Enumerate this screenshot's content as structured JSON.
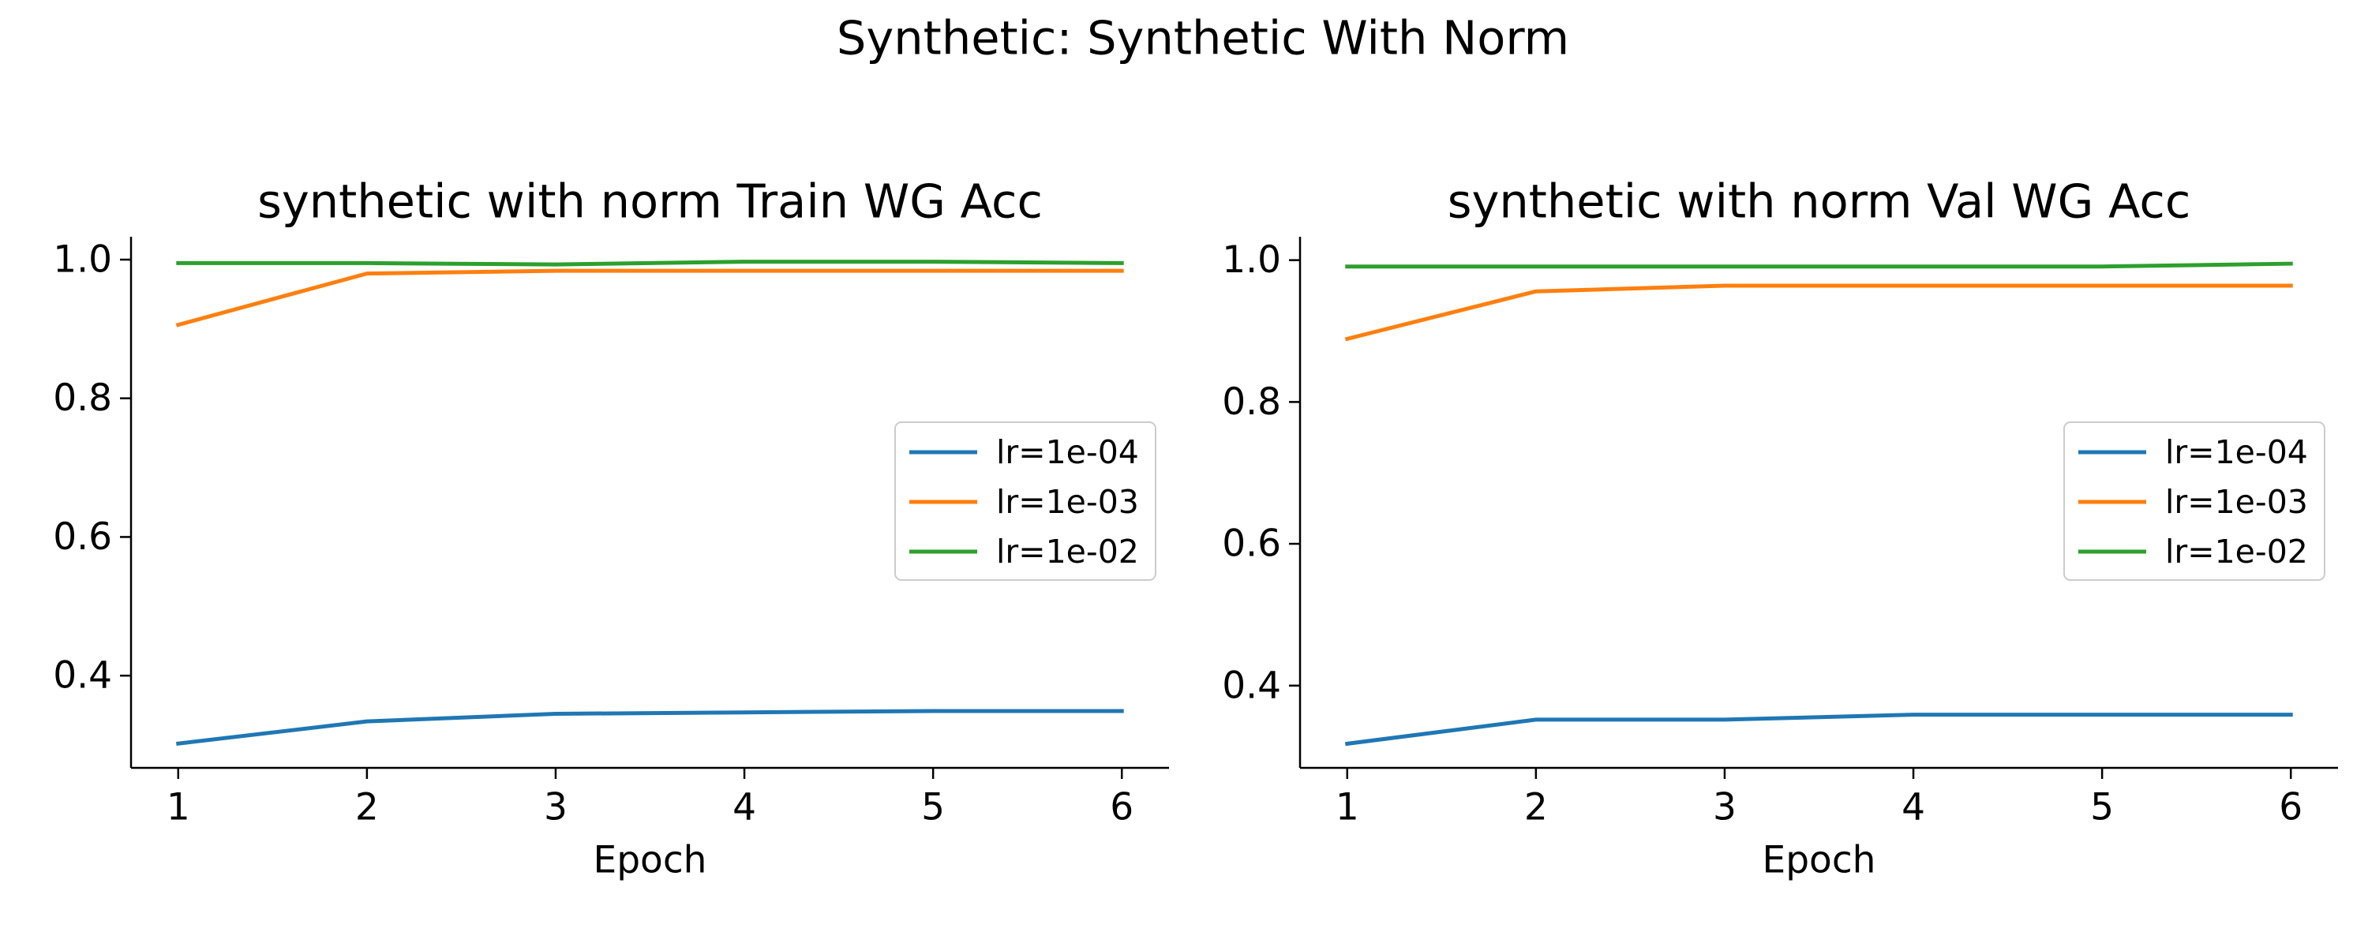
{
  "suptitle": "Synthetic: Synthetic With Norm",
  "colors": {
    "lr=1e-04": "#1f77b4",
    "lr=1e-03": "#ff7f0e",
    "lr=1e-02": "#2ca02c"
  },
  "chart_data": [
    {
      "type": "line",
      "title": "synthetic with norm Train WG Acc",
      "xlabel": "Epoch",
      "ylabel": "",
      "x": [
        1,
        2,
        3,
        4,
        5,
        6
      ],
      "xticks": [
        "1",
        "2",
        "3",
        "4",
        "5",
        "6"
      ],
      "yticks": [
        "0.4",
        "0.6",
        "0.8",
        "1.0"
      ],
      "xlim": [
        0.75,
        6.25
      ],
      "ylim": [
        0.267,
        1.033
      ],
      "grid": false,
      "legend_position": "center-right",
      "series": [
        {
          "name": "lr=1e-04",
          "values": [
            0.302,
            0.334,
            0.345,
            0.347,
            0.349,
            0.349
          ]
        },
        {
          "name": "lr=1e-03",
          "values": [
            0.906,
            0.98,
            0.984,
            0.984,
            0.984,
            0.984
          ]
        },
        {
          "name": "lr=1e-02",
          "values": [
            0.995,
            0.995,
            0.993,
            0.997,
            0.997,
            0.995
          ]
        }
      ]
    },
    {
      "type": "line",
      "title": "synthetic with norm Val WG Acc",
      "xlabel": "Epoch",
      "ylabel": "",
      "x": [
        1,
        2,
        3,
        4,
        5,
        6
      ],
      "xticks": [
        "1",
        "2",
        "3",
        "4",
        "5",
        "6"
      ],
      "yticks": [
        "0.4",
        "0.6",
        "0.8",
        "1.0"
      ],
      "xlim": [
        0.75,
        6.25
      ],
      "ylim": [
        0.284,
        1.033
      ],
      "grid": false,
      "legend_position": "center-right",
      "series": [
        {
          "name": "lr=1e-04",
          "values": [
            0.318,
            0.352,
            0.352,
            0.359,
            0.359,
            0.359
          ]
        },
        {
          "name": "lr=1e-03",
          "values": [
            0.889,
            0.956,
            0.964,
            0.964,
            0.964,
            0.964
          ]
        },
        {
          "name": "lr=1e-02",
          "values": [
            0.991,
            0.991,
            0.991,
            0.991,
            0.991,
            0.995
          ]
        }
      ]
    }
  ]
}
